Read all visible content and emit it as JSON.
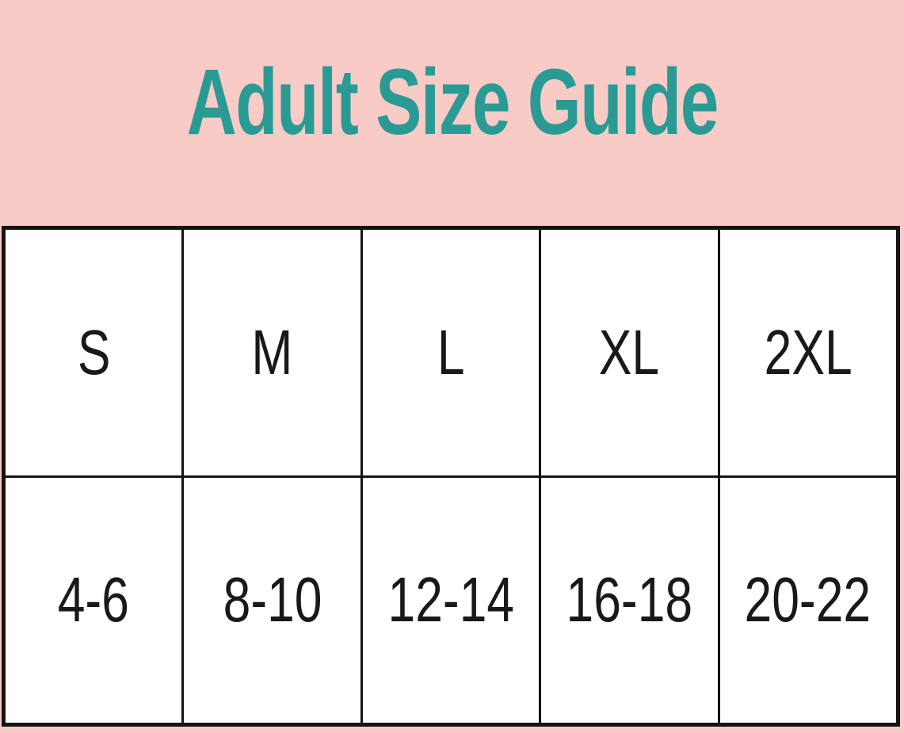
{
  "title": "Adult Size Guide",
  "colors": {
    "header_bg": "#f9cbc7",
    "title_color": "#2a9b94",
    "border_color": "#141414",
    "cell_bg": "#ffffff",
    "cell_text": "#191919"
  },
  "table": {
    "sizes": [
      "S",
      "M",
      "L",
      "XL",
      "2XL"
    ],
    "age_ranges": [
      "4-6",
      "8-10",
      "12-14",
      "16-18",
      "20-22"
    ]
  },
  "chart_data": {
    "type": "table",
    "title": "Adult Size Guide",
    "columns": [
      "S",
      "M",
      "L",
      "XL",
      "2XL"
    ],
    "rows": [
      [
        "4-6",
        "8-10",
        "12-14",
        "16-18",
        "20-22"
      ]
    ]
  }
}
